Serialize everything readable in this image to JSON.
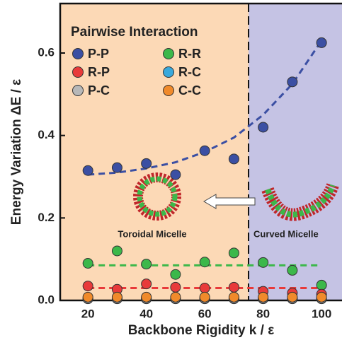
{
  "chart_data": {
    "type": "scatter",
    "legend_title": "Pairwise Interaction",
    "x_label": "Backbone Rigidity k / ε",
    "y_label": "Energy Variation ΔE / ε",
    "xlim": [
      10.5,
      107
    ],
    "ylim": [
      0,
      0.72
    ],
    "xticks": [
      20,
      40,
      60,
      80,
      100
    ],
    "yticks": [
      {
        "value": 0,
        "label": "0.0"
      },
      {
        "value": 0.2,
        "label": "0.2"
      },
      {
        "value": 0.4,
        "label": "0.4"
      },
      {
        "value": 0.6,
        "label": "0.6"
      }
    ],
    "boundary_x": 75,
    "left_region_color": "#fcd9b6",
    "right_region_color": "#c5c3e4",
    "x": [
      20,
      30,
      40,
      50,
      60,
      70,
      80,
      90,
      100
    ],
    "series": [
      {
        "name": "P-P",
        "color": "#3b4fa3",
        "values": [
          0.315,
          0.322,
          0.332,
          0.305,
          0.363,
          0.343,
          0.42,
          0.53,
          0.625
        ]
      },
      {
        "name": "R-R",
        "color": "#3cb84a",
        "values": [
          0.09,
          0.12,
          0.088,
          0.063,
          0.093,
          0.115,
          0.092,
          0.073,
          0.037
        ]
      },
      {
        "name": "R-P",
        "color": "#e83a3a",
        "values": [
          0.035,
          0.027,
          0.04,
          0.032,
          0.03,
          0.032,
          0.022,
          0.018,
          0.015
        ]
      },
      {
        "name": "R-C",
        "color": "#39a9dc",
        "values": [
          0.004,
          0.004,
          0.004,
          0.004,
          0.004,
          0.004,
          0.004,
          0.004,
          0.004
        ]
      },
      {
        "name": "P-C",
        "color": "#b8b8b8",
        "values": [
          0.005,
          0.005,
          0.005,
          0.005,
          0.005,
          0.005,
          0.005,
          0.005,
          0.005
        ]
      },
      {
        "name": "C-C",
        "color": "#f08a2b",
        "values": [
          0.008,
          0.008,
          0.008,
          0.008,
          0.008,
          0.008,
          0.008,
          0.008,
          0.008
        ]
      }
    ],
    "trend_lines": [
      {
        "color": "#3b4fa3",
        "x": [
          20,
          30,
          40,
          50,
          60,
          70,
          80,
          90,
          100
        ],
        "values": [
          0.305,
          0.31,
          0.32,
          0.335,
          0.36,
          0.395,
          0.45,
          0.525,
          0.63
        ]
      },
      {
        "color": "#3cb84a",
        "x": [
          20,
          100
        ],
        "values": [
          0.085,
          0.085
        ]
      },
      {
        "color": "#e83a3a",
        "x": [
          20,
          100
        ],
        "values": [
          0.03,
          0.03
        ]
      }
    ],
    "annotations": [
      "Toroidal Micelle",
      "Curved Micelle"
    ]
  }
}
